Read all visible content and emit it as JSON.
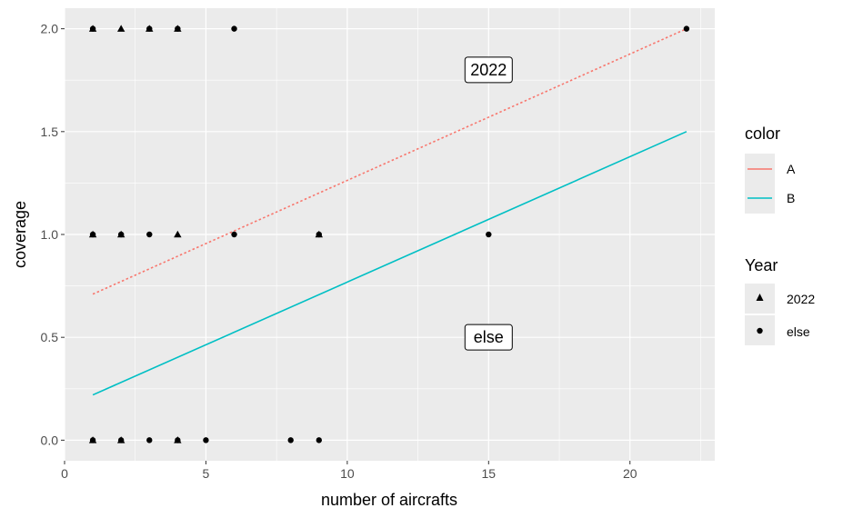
{
  "chart_data": {
    "type": "scatter",
    "xlabel": "number of aircrafts",
    "ylabel": "coverage",
    "xlim": [
      0,
      23
    ],
    "ylim": [
      -0.1,
      2.1
    ],
    "x_ticks": [
      0,
      5,
      10,
      15,
      20
    ],
    "y_ticks": [
      0.0,
      0.5,
      1.0,
      1.5,
      2.0
    ],
    "x_tick_labels": [
      "0",
      "5",
      "10",
      "15",
      "20"
    ],
    "y_tick_labels": [
      "0.0",
      "0.5",
      "1.0",
      "1.5",
      "2.0"
    ],
    "grid": true,
    "points_2022": [
      {
        "x": 1,
        "y": 2
      },
      {
        "x": 2,
        "y": 2
      },
      {
        "x": 3,
        "y": 2
      },
      {
        "x": 4,
        "y": 2
      },
      {
        "x": 1,
        "y": 1
      },
      {
        "x": 2,
        "y": 1
      },
      {
        "x": 4,
        "y": 1
      },
      {
        "x": 9,
        "y": 1
      },
      {
        "x": 1,
        "y": 0
      },
      {
        "x": 2,
        "y": 0
      },
      {
        "x": 4,
        "y": 0
      }
    ],
    "points_else": [
      {
        "x": 1,
        "y": 2
      },
      {
        "x": 3,
        "y": 2
      },
      {
        "x": 4,
        "y": 2
      },
      {
        "x": 6,
        "y": 2
      },
      {
        "x": 22,
        "y": 2
      },
      {
        "x": 1,
        "y": 1
      },
      {
        "x": 2,
        "y": 1
      },
      {
        "x": 3,
        "y": 1
      },
      {
        "x": 6,
        "y": 1
      },
      {
        "x": 9,
        "y": 1
      },
      {
        "x": 15,
        "y": 1
      },
      {
        "x": 1,
        "y": 0
      },
      {
        "x": 2,
        "y": 0
      },
      {
        "x": 3,
        "y": 0
      },
      {
        "x": 4,
        "y": 0
      },
      {
        "x": 5,
        "y": 0
      },
      {
        "x": 8,
        "y": 0
      },
      {
        "x": 9,
        "y": 0
      }
    ],
    "lines": [
      {
        "name": "A",
        "color": "#F8766D",
        "style": "dotted",
        "x": [
          1,
          22
        ],
        "y": [
          0.71,
          2.0
        ]
      },
      {
        "name": "B",
        "color": "#00BFC4",
        "style": "solid",
        "x": [
          1,
          22
        ],
        "y": [
          0.22,
          1.5
        ]
      }
    ],
    "annotations": [
      {
        "text": "2022",
        "x": 15,
        "y": 1.8
      },
      {
        "text": "else",
        "x": 15,
        "y": 0.5
      }
    ],
    "legends": {
      "color": {
        "title": "color",
        "items": [
          "A",
          "B"
        ]
      },
      "year": {
        "title": "Year",
        "items": [
          "2022",
          "else"
        ]
      }
    },
    "legend_position": "right"
  }
}
